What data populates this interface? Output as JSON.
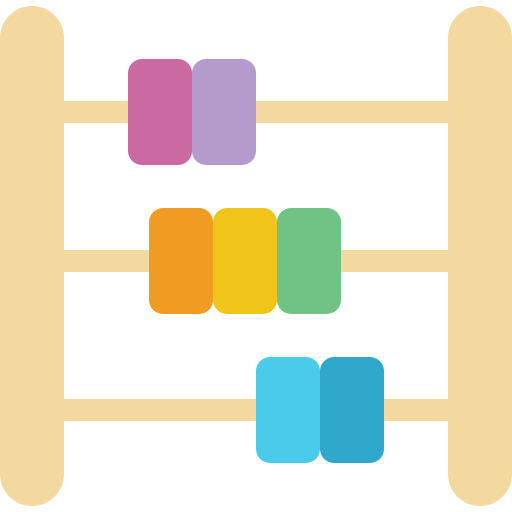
{
  "icon": "abacus-icon",
  "colors": {
    "frame": "#F3D89F",
    "background": "#FFFFFF"
  },
  "rows": [
    {
      "name": "top",
      "beads": [
        {
          "color": "#CB69A3"
        },
        {
          "color": "#B49BCB"
        }
      ]
    },
    {
      "name": "middle",
      "beads": [
        {
          "color": "#F09C22"
        },
        {
          "color": "#F0C419"
        },
        {
          "color": "#71C385"
        }
      ]
    },
    {
      "name": "bottom",
      "beads": [
        {
          "color": "#4ACBEA"
        },
        {
          "color": "#2FA8CC"
        }
      ]
    }
  ]
}
